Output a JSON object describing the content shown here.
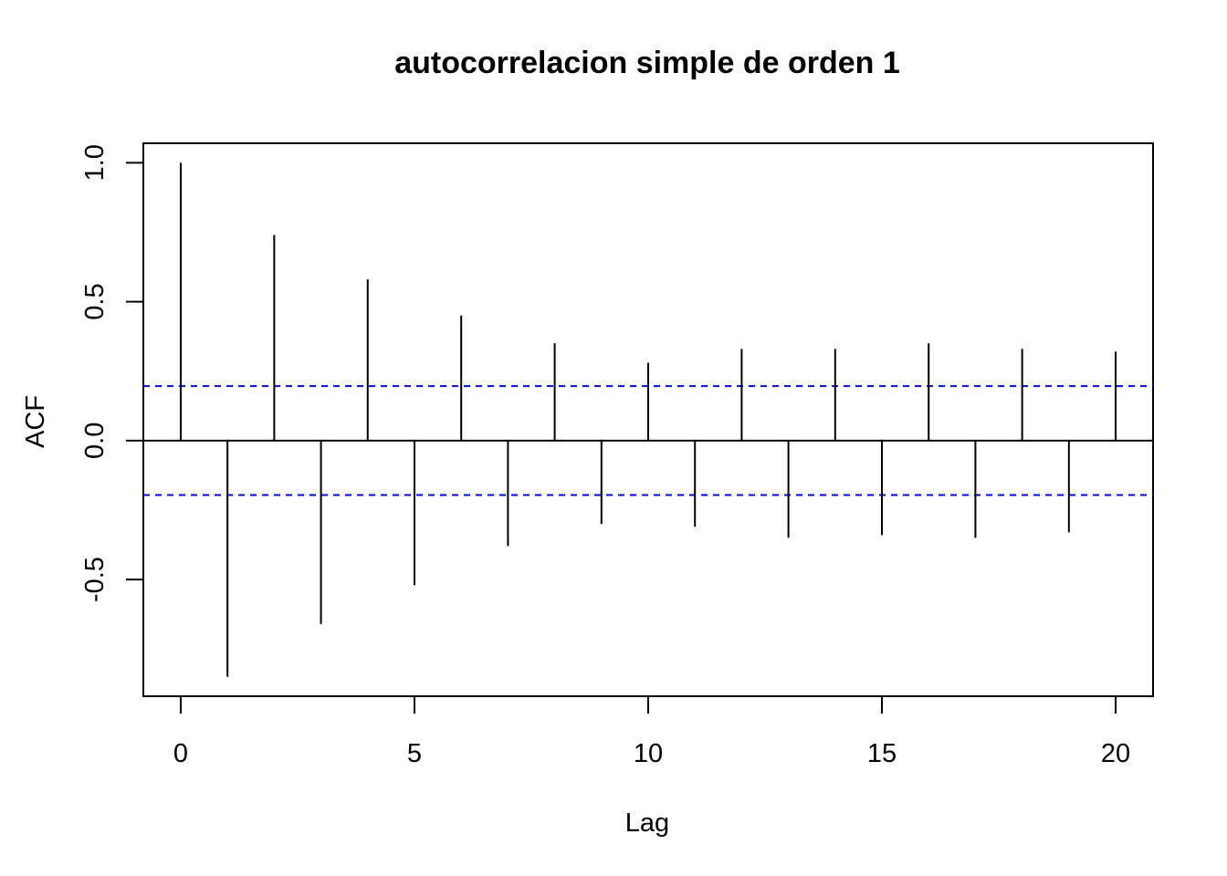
{
  "chart_data": {
    "type": "bar",
    "title": "autocorrelacion simple de orden 1",
    "xlabel": "Lag",
    "ylabel": "ACF",
    "xlim": [
      -0.8,
      20.8
    ],
    "ylim": [
      -0.92,
      1.07
    ],
    "x_ticks": [
      0,
      5,
      10,
      15,
      20
    ],
    "x_tick_labels": [
      "0",
      "5",
      "10",
      "15",
      "20"
    ],
    "y_ticks": [
      -0.5,
      0.0,
      0.5,
      1.0
    ],
    "y_tick_labels": [
      "-0.5",
      "0.0",
      "0.5",
      "1.0"
    ],
    "lags": [
      0,
      1,
      2,
      3,
      4,
      5,
      6,
      7,
      8,
      9,
      10,
      11,
      12,
      13,
      14,
      15,
      16,
      17,
      18,
      19,
      20
    ],
    "values": [
      1.0,
      -0.85,
      0.74,
      -0.66,
      0.58,
      -0.52,
      0.45,
      -0.38,
      0.35,
      -0.3,
      0.28,
      -0.31,
      0.33,
      -0.35,
      0.33,
      -0.34,
      0.35,
      -0.35,
      0.33,
      -0.33,
      0.32
    ],
    "confidence_bound": 0.196,
    "confidence_color": "#0000ff",
    "bar_color": "#000000",
    "grid": false
  }
}
